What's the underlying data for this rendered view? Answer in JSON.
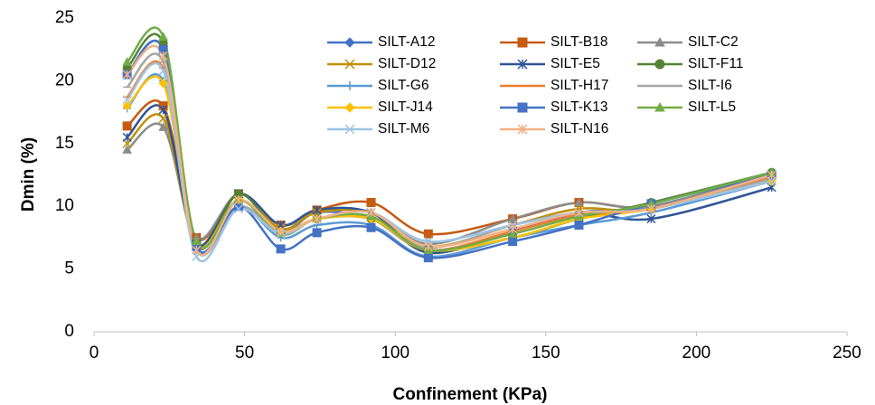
{
  "chart_data": {
    "type": "line",
    "x_label": "Confinement (KPa)",
    "y_label": "Dmin (%)",
    "x": [
      11,
      23,
      34,
      48,
      62,
      74,
      92,
      111,
      139,
      161,
      185,
      225
    ],
    "xlim": [
      0,
      250
    ],
    "xticks": [
      0,
      50,
      100,
      150,
      200,
      250
    ],
    "ylim": [
      0,
      25
    ],
    "yticks": [
      0,
      5,
      10,
      15,
      20,
      25
    ],
    "grid": false,
    "smooth": true,
    "series": [
      {
        "name": "SILT-A12",
        "color": "#4472C4",
        "marker": "diamond",
        "values": [
          20.5,
          22.5,
          7,
          11,
          8,
          9.5,
          9,
          6.5,
          8,
          9.5,
          10,
          12.5
        ]
      },
      {
        "name": "SILT-B18",
        "color": "#C55A11",
        "marker": "square",
        "values": [
          16.4,
          18,
          7.5,
          11,
          8.5,
          9.7,
          10.3,
          7.8,
          9,
          10.3,
          10,
          12.5
        ]
      },
      {
        "name": "SILT-C2",
        "color": "#8C8C8C",
        "marker": "triangle",
        "values": [
          14.5,
          16.3,
          7.5,
          11,
          8.5,
          9.5,
          9.5,
          7,
          9,
          10.3,
          10,
          12.7
        ]
      },
      {
        "name": "SILT-D12",
        "color": "#BF9000",
        "marker": "x",
        "values": [
          15,
          17,
          7,
          11,
          8.2,
          9.5,
          9.5,
          6.8,
          8.5,
          9.8,
          9.8,
          12.3
        ]
      },
      {
        "name": "SILT-E5",
        "color": "#2F5597",
        "marker": "star",
        "values": [
          15.5,
          17.7,
          7,
          11,
          8.5,
          9.7,
          9.5,
          6.3,
          8,
          9.5,
          9,
          11.5
        ]
      },
      {
        "name": "SILT-F11",
        "color": "#548235",
        "marker": "circle",
        "values": [
          21,
          23,
          7,
          11,
          7.8,
          9,
          9,
          6.5,
          7.5,
          9,
          10.3,
          12.7
        ]
      },
      {
        "name": "SILT-G6",
        "color": "#5B9BD5",
        "marker": "plus",
        "values": [
          17.8,
          20,
          6.5,
          10,
          7.5,
          8.5,
          8.5,
          6,
          7.5,
          8.5,
          9.5,
          12
        ]
      },
      {
        "name": "SILT-H17",
        "color": "#ED7D31",
        "marker": "dash",
        "values": [
          18.7,
          21,
          7,
          10.5,
          8,
          9,
          9,
          6.5,
          8,
          9.3,
          9.8,
          12.3
        ]
      },
      {
        "name": "SILT-I6",
        "color": "#A5A5A5",
        "marker": "dash",
        "values": [
          19.5,
          21.5,
          6.5,
          10,
          8,
          9,
          9,
          6.7,
          8.5,
          9.5,
          9.8,
          12.2
        ]
      },
      {
        "name": "SILT-J14",
        "color": "#FFC000",
        "marker": "diamond",
        "values": [
          18,
          19.8,
          7,
          10.5,
          8,
          9,
          9,
          6.5,
          7.5,
          9,
          9.8,
          12
        ]
      },
      {
        "name": "SILT-K13",
        "color": "#4472C4",
        "marker": "square",
        "values": [
          20.5,
          22.5,
          6.8,
          10,
          6.6,
          7.9,
          8.3,
          5.9,
          7.2,
          8.5,
          10.2,
          12.5
        ]
      },
      {
        "name": "SILT-L5",
        "color": "#70AD47",
        "marker": "triangle",
        "values": [
          21.5,
          23.5,
          7.2,
          10.5,
          7.8,
          9,
          9.2,
          6.5,
          7.8,
          9.2,
          10.2,
          12.7
        ]
      },
      {
        "name": "SILT-M6",
        "color": "#9DC3E6",
        "marker": "x",
        "values": [
          18.5,
          20.8,
          6,
          9.8,
          7.8,
          9,
          9.5,
          7.2,
          8.5,
          9.5,
          9.8,
          12
        ]
      },
      {
        "name": "SILT-N16",
        "color": "#F4B183",
        "marker": "star",
        "values": [
          20.5,
          22,
          6.5,
          10.5,
          8,
          9,
          9.5,
          6.8,
          8.2,
          9.5,
          9.8,
          12.5
        ]
      }
    ]
  }
}
